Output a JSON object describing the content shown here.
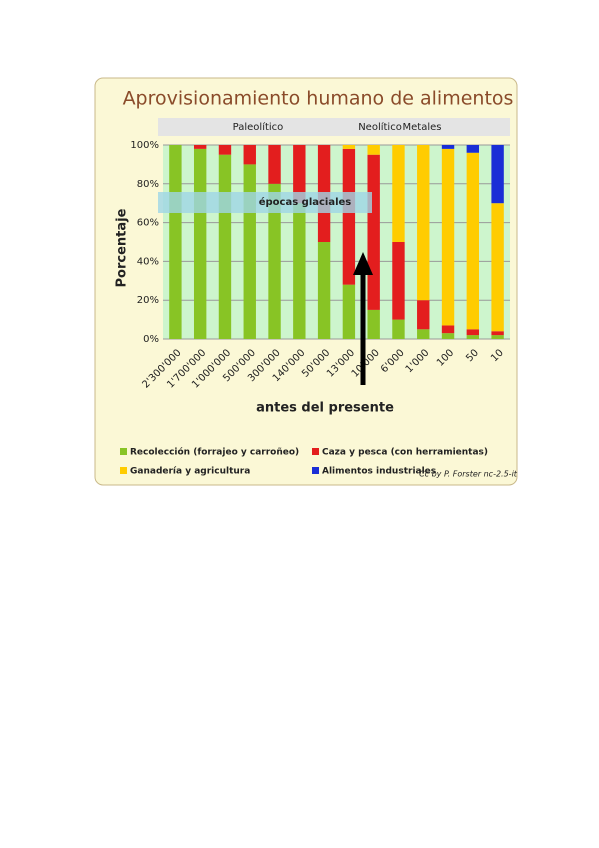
{
  "chart_data": {
    "type": "stacked_bar",
    "title": "Aprovisionamiento humano de alimentos",
    "periods": [
      "Paleolítico",
      "Neolítico",
      "Metales"
    ],
    "annotation": "épocas glaciales",
    "y_label": "Porcentaje",
    "x_label": "antes del presente",
    "credit": "Cc by P. Forster nc-2.5-it",
    "categories": [
      "2'300'000",
      "1'700'000",
      "1'000'000",
      "500'000",
      "300'000",
      "140'000",
      "50'000",
      "13'000",
      "10'000",
      "6'000",
      "1'000",
      "100",
      "50",
      "10"
    ],
    "series": [
      {
        "name": "Recolección (forrajeo y carroñeo)",
        "color": "#88c425",
        "values": [
          100,
          98,
          95,
          90,
          80,
          70,
          50,
          28,
          15,
          10,
          5,
          3,
          2,
          2
        ]
      },
      {
        "name": "Caza y pesca (con herramientas)",
        "color": "#e31e1e",
        "values": [
          0,
          2,
          5,
          10,
          20,
          30,
          50,
          70,
          80,
          40,
          15,
          4,
          3,
          2
        ]
      },
      {
        "name": "Ganadería y agricultura",
        "color": "#ffcc00",
        "values": [
          0,
          0,
          0,
          0,
          0,
          0,
          0,
          2,
          5,
          50,
          80,
          91,
          91,
          66
        ]
      },
      {
        "name": "Alimentos industriales",
        "color": "#1a2ed6",
        "values": [
          0,
          0,
          0,
          0,
          0,
          0,
          0,
          0,
          0,
          0,
          0,
          2,
          4,
          30
        ]
      }
    ],
    "ylim": [
      0,
      100
    ],
    "yticks": [
      {
        "value": 0,
        "label": "0%"
      },
      {
        "value": 20,
        "label": "20%"
      },
      {
        "value": 40,
        "label": "40%"
      },
      {
        "value": 60,
        "label": "60%"
      },
      {
        "value": 80,
        "label": "80%"
      },
      {
        "value": 100,
        "label": "100%"
      }
    ],
    "grid": true
  }
}
